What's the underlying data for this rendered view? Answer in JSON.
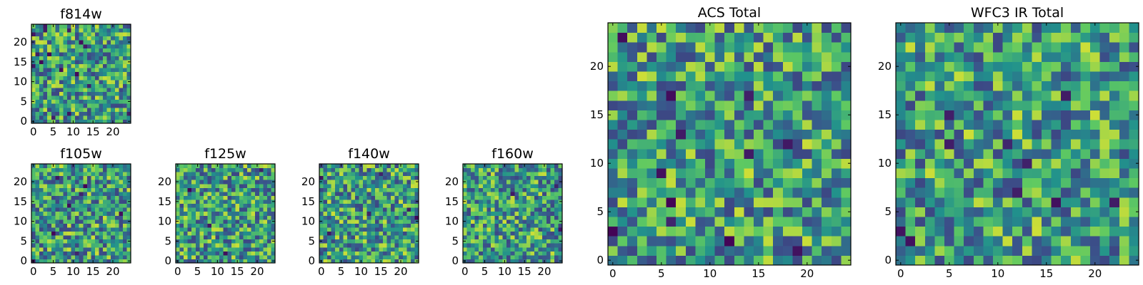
{
  "chart_data": [
    {
      "id": "f814w",
      "type": "heatmap",
      "title": "f814w",
      "grid_size": 25,
      "xlim": [
        0,
        24
      ],
      "ylim": [
        0,
        24
      ],
      "xticks": [
        0,
        5,
        10,
        15,
        20
      ],
      "yticks": [
        0,
        5,
        10,
        15,
        20
      ],
      "xlabel": "",
      "ylabel": "",
      "colormap": "viridis",
      "seed": 11,
      "dark_cells": 16
    },
    {
      "id": "f105w",
      "type": "heatmap",
      "title": "f105w",
      "grid_size": 25,
      "xlim": [
        0,
        24
      ],
      "ylim": [
        0,
        24
      ],
      "xticks": [
        0,
        5,
        10,
        15,
        20
      ],
      "yticks": [
        0,
        5,
        10,
        15,
        20
      ],
      "xlabel": "",
      "ylabel": "",
      "colormap": "viridis",
      "seed": 23,
      "dark_cells": 8
    },
    {
      "id": "f125w",
      "type": "heatmap",
      "title": "f125w",
      "grid_size": 25,
      "xlim": [
        0,
        24
      ],
      "ylim": [
        0,
        24
      ],
      "xticks": [
        0,
        5,
        10,
        15,
        20
      ],
      "yticks": [
        0,
        5,
        10,
        15,
        20
      ],
      "xlabel": "",
      "ylabel": "",
      "colormap": "viridis",
      "seed": 37,
      "dark_cells": 4
    },
    {
      "id": "f140w",
      "type": "heatmap",
      "title": "f140w",
      "grid_size": 25,
      "xlim": [
        0,
        24
      ],
      "ylim": [
        0,
        24
      ],
      "xticks": [
        0,
        5,
        10,
        15,
        20
      ],
      "yticks": [
        0,
        5,
        10,
        15,
        20
      ],
      "xlabel": "",
      "ylabel": "",
      "colormap": "viridis",
      "seed": 41,
      "dark_cells": 6
    },
    {
      "id": "f160w",
      "type": "heatmap",
      "title": "f160w",
      "grid_size": 25,
      "xlim": [
        0,
        24
      ],
      "ylim": [
        0,
        24
      ],
      "xticks": [
        0,
        5,
        10,
        15,
        20
      ],
      "yticks": [
        0,
        5,
        10,
        15,
        20
      ],
      "xlabel": "",
      "ylabel": "",
      "colormap": "viridis",
      "seed": 53,
      "dark_cells": 3
    },
    {
      "id": "acs-total",
      "type": "heatmap",
      "title": "ACS Total",
      "grid_size": 25,
      "xlim": [
        0,
        24
      ],
      "ylim": [
        0,
        24
      ],
      "xticks": [
        0,
        5,
        10,
        15,
        20
      ],
      "yticks": [
        0,
        5,
        10,
        15,
        20
      ],
      "xlabel": "",
      "ylabel": "",
      "colormap": "viridis",
      "seed": 67,
      "dark_cells": 12
    },
    {
      "id": "wfc3-ir-total",
      "type": "heatmap",
      "title": "WFC3 IR Total",
      "grid_size": 25,
      "xlim": [
        0,
        24
      ],
      "ylim": [
        0,
        24
      ],
      "xticks": [
        0,
        5,
        10,
        15,
        20
      ],
      "yticks": [
        0,
        5,
        10,
        15,
        20
      ],
      "xlabel": "",
      "ylabel": "",
      "colormap": "viridis",
      "seed": 79,
      "dark_cells": 10
    }
  ],
  "colors": {
    "viridis": [
      "#440154",
      "#3b528b",
      "#21918c",
      "#5ec962",
      "#fde725"
    ],
    "frame": "#000000",
    "background": "#ffffff"
  }
}
